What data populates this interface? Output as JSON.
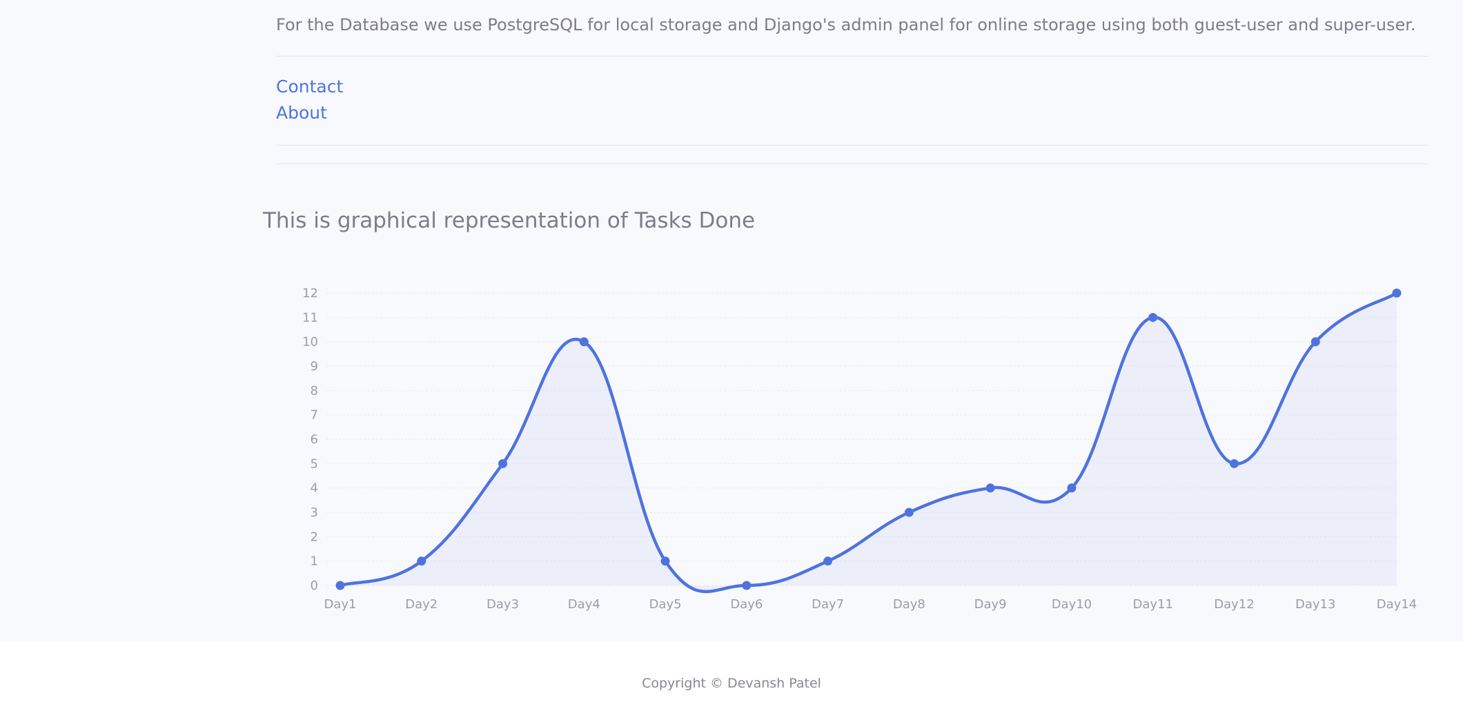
{
  "intro": {
    "database_text": "For the Database we use PostgreSQL for local storage and Django's admin panel for online storage using both guest-user and super-user."
  },
  "links": {
    "contact": "Contact",
    "about": "About"
  },
  "chart_section": {
    "heading": "This is graphical representation of Tasks Done"
  },
  "chart_data": {
    "type": "line",
    "title": "",
    "xlabel": "",
    "ylabel": "",
    "categories": [
      "Day1",
      "Day2",
      "Day3",
      "Day4",
      "Day5",
      "Day6",
      "Day7",
      "Day8",
      "Day9",
      "Day10",
      "Day11",
      "Day12",
      "Day13",
      "Day14"
    ],
    "series": [
      {
        "values": [
          0,
          1,
          5,
          10,
          1,
          0,
          1,
          3,
          4,
          4,
          11,
          5,
          10,
          12
        ]
      }
    ],
    "ylim": [
      0,
      12
    ],
    "yticks": [
      0,
      1,
      2,
      3,
      4,
      5,
      6,
      7,
      8,
      9,
      10,
      11,
      12
    ],
    "grid": true,
    "fill": true,
    "curve": "smooth",
    "legend": "none",
    "colors": {
      "line": "#4e73df",
      "fill": "rgba(78,115,223,0.07)",
      "grid": "#eaecf4",
      "tick_text": "#9a9ca8"
    }
  },
  "footer": {
    "copyright": "Copyright © Devansh Patel"
  },
  "colors": {
    "page_bg": "#f8f9fc",
    "footer_bg": "#ffffff",
    "link": "#4e73df",
    "text": "#858796"
  }
}
